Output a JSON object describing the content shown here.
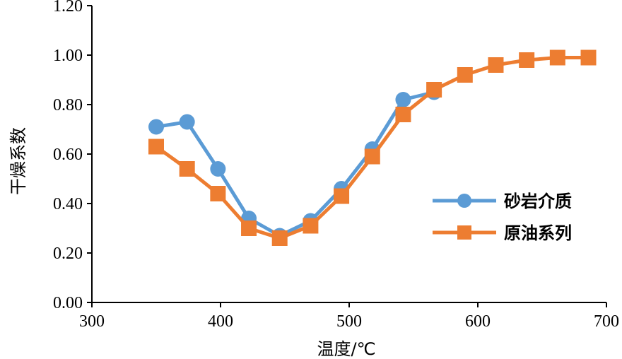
{
  "chart_data": {
    "type": "line",
    "title": "",
    "xlabel": "温度/℃",
    "ylabel": "干燥系数",
    "xlim": [
      300,
      700
    ],
    "ylim": [
      0.0,
      1.2
    ],
    "x_ticks": [
      "300",
      "400",
      "500",
      "600",
      "700"
    ],
    "y_ticks": [
      "0.00",
      "0.20",
      "0.40",
      "0.60",
      "0.80",
      "1.00",
      "1.20"
    ],
    "grid": false,
    "legend_position": "right",
    "series": [
      {
        "name": "砂岩介质",
        "color": "#5B9BD5",
        "marker": "circle",
        "x": [
          350,
          374,
          398,
          422,
          446,
          470,
          494,
          518,
          542,
          566
        ],
        "y": [
          0.71,
          0.73,
          0.54,
          0.34,
          0.27,
          0.33,
          0.46,
          0.62,
          0.82,
          0.85
        ]
      },
      {
        "name": "原油系列",
        "color": "#ED7D31",
        "marker": "square",
        "x": [
          350,
          374,
          398,
          422,
          446,
          470,
          494,
          518,
          542,
          566,
          590,
          614,
          638,
          662,
          686
        ],
        "y": [
          0.63,
          0.54,
          0.44,
          0.3,
          0.26,
          0.31,
          0.43,
          0.59,
          0.76,
          0.86,
          0.92,
          0.96,
          0.98,
          0.99,
          0.99
        ]
      }
    ]
  }
}
